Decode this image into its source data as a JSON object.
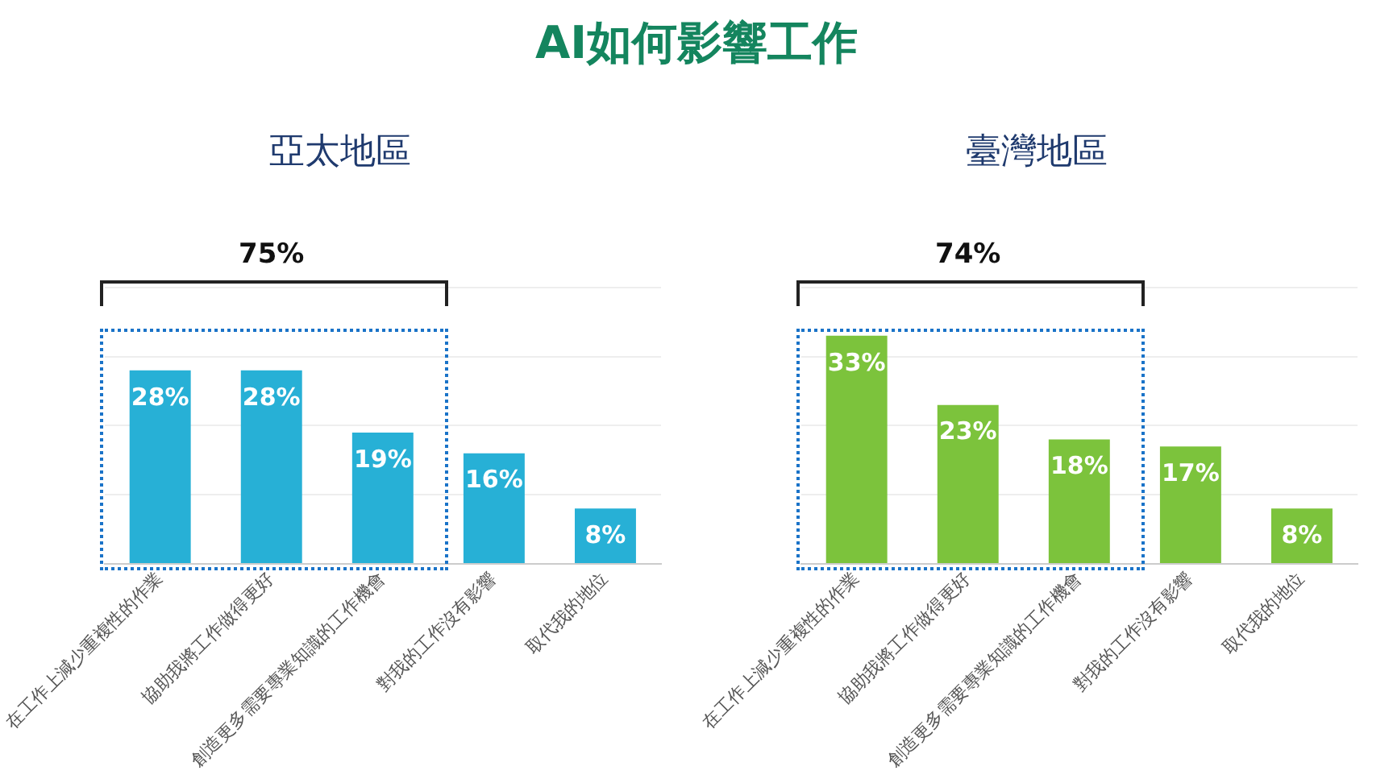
{
  "chart_data": [
    {
      "type": "bar",
      "title": "AI如何影響工作",
      "subtitle": "亞太地區",
      "categories": [
        "在工作上減少重複性的作業",
        "協助我將工作做得更好",
        "創造更多需要專業知識的工作機會",
        "對我的工作沒有影響",
        "取代我的地位"
      ],
      "values": [
        28,
        28,
        19,
        16,
        8
      ],
      "value_labels": [
        "28%",
        "28%",
        "19%",
        "16%",
        "8%"
      ],
      "color": "#27b0d6",
      "ylim": [
        0,
        40
      ],
      "yticks": [
        0,
        10,
        20,
        30,
        40
      ],
      "grid": "y",
      "tick_labels": "x",
      "legend": false,
      "annotations": [
        "75%"
      ]
    },
    {
      "type": "bar",
      "subtitle": "臺灣地區",
      "categories": [
        "在工作上減少重複性的作業",
        "協助我將工作做得更好",
        "創造更多需要專業知識的工作機會",
        "對我的工作沒有影響",
        "取代我的地位"
      ],
      "values": [
        33,
        23,
        18,
        17,
        8
      ],
      "value_labels": [
        "33%",
        "23%",
        "18%",
        "17%",
        "8%"
      ],
      "color": "#7cc33c",
      "ylim": [
        0,
        40
      ],
      "yticks": [
        0,
        10,
        20,
        30,
        40
      ],
      "grid": "y",
      "tick_labels": "x",
      "legend": false,
      "annotations": [
        "74%"
      ]
    }
  ]
}
